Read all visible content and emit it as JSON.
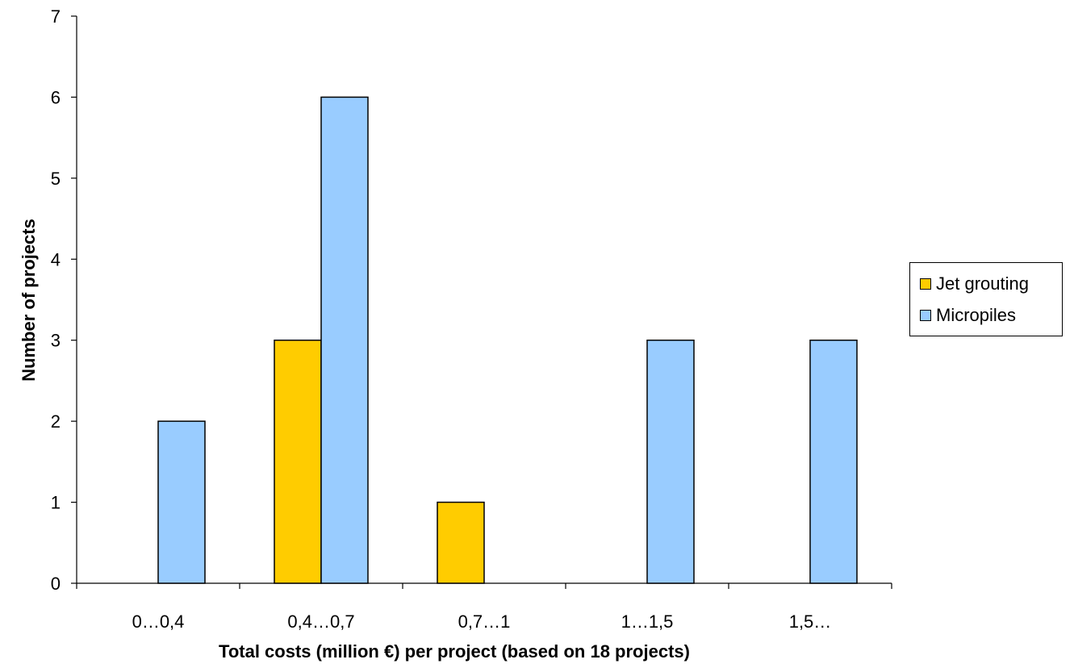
{
  "chart_data": {
    "type": "bar",
    "title": "",
    "xlabel": "Total costs (million €) per project (based on 18 projects)",
    "ylabel": "Number of projects",
    "categories": [
      "0…0,4",
      "0,4…0,7",
      "0,7…1",
      "1…1,5",
      "1,5…"
    ],
    "series": [
      {
        "name": "Jet grouting",
        "color": "#FFCC00",
        "values": [
          0,
          3,
          1,
          0,
          0
        ]
      },
      {
        "name": "Micropiles",
        "color": "#99CCFF",
        "values": [
          2,
          6,
          0,
          3,
          3
        ]
      }
    ],
    "ylim": [
      0,
      7
    ],
    "yticks": [
      "0",
      "1",
      "2",
      "3",
      "4",
      "5",
      "6",
      "7"
    ],
    "grid": false,
    "legend_position": "right"
  }
}
